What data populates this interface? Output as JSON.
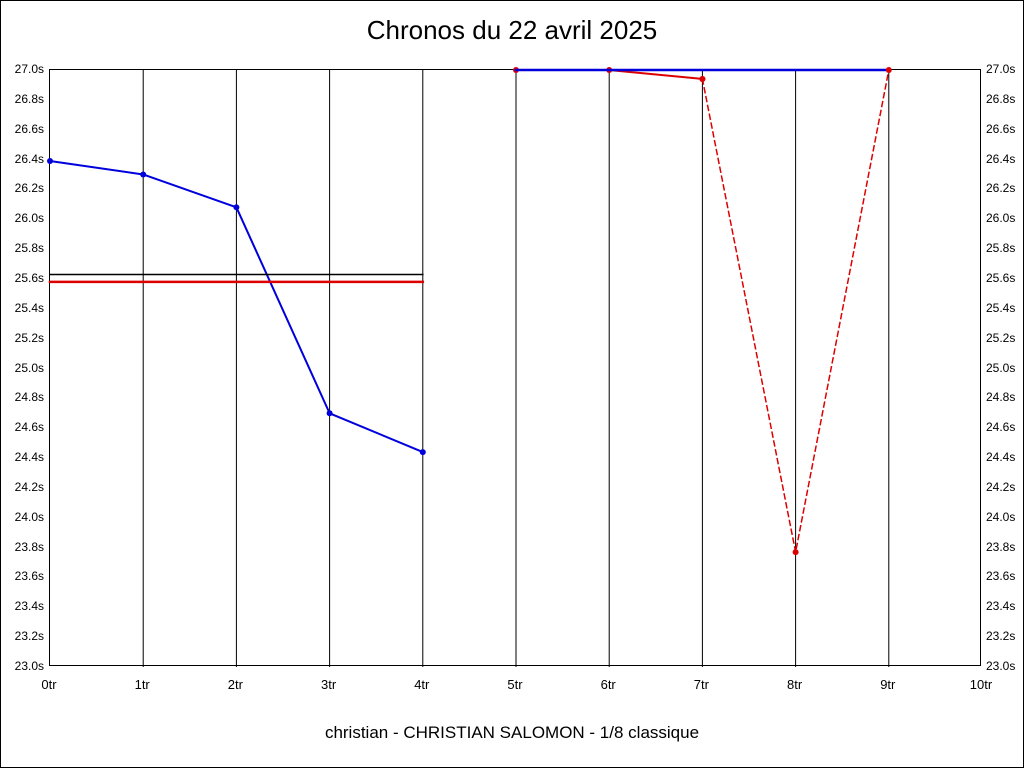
{
  "chart_data": {
    "type": "line",
    "title": "Chronos du 22 avril 2025",
    "caption": "christian - CHRISTIAN SALOMON - 1/8 classique",
    "xlim": [
      0,
      10
    ],
    "ylim": [
      23.0,
      27.0
    ],
    "x_tick_step": 1,
    "y_tick_step": 0.2,
    "x_tick_labels": [
      "0tr",
      "1tr",
      "2tr",
      "3tr",
      "4tr",
      "5tr",
      "6tr",
      "7tr",
      "8tr",
      "9tr",
      "10tr"
    ],
    "y_tick_labels": [
      "27.0s",
      "26.8s",
      "26.6s",
      "26.4s",
      "26.2s",
      "26.0s",
      "25.8s",
      "25.6s",
      "25.4s",
      "25.2s",
      "25.0s",
      "24.8s",
      "24.6s",
      "24.4s",
      "24.2s",
      "24.0s",
      "23.8s",
      "23.6s",
      "23.4s",
      "23.2s",
      "23.0s"
    ],
    "grid": {
      "vertical": true,
      "horizontal": false
    },
    "legend": "none",
    "colors": {
      "lap_blue": "#0000dd",
      "lap_red": "#dd0000",
      "mean_black": "#000000"
    },
    "series": [
      {
        "name": "run1-laps-blue",
        "color": "#0000dd",
        "width": 2,
        "dash": null,
        "markers": true,
        "x": [
          0,
          1,
          2,
          3,
          4
        ],
        "y": [
          26.39,
          26.3,
          26.08,
          24.7,
          24.44
        ]
      },
      {
        "name": "run1-mean-black",
        "color": "#000000",
        "width": 1.5,
        "dash": null,
        "markers": false,
        "x": [
          0,
          4
        ],
        "y": [
          25.63,
          25.63
        ]
      },
      {
        "name": "run1-mean-red",
        "color": "#dd0000",
        "width": 2.5,
        "dash": null,
        "markers": false,
        "x": [
          0,
          4
        ],
        "y": [
          25.58,
          25.58
        ]
      },
      {
        "name": "run2-red-solid",
        "color": "#dd0000",
        "width": 2,
        "dash": null,
        "markers": true,
        "x": [
          5,
          6,
          7
        ],
        "y": [
          27.0,
          27.0,
          26.94
        ]
      },
      {
        "name": "run2-cap-blue",
        "color": "#0000dd",
        "width": 2.5,
        "dash": null,
        "markers": false,
        "x": [
          5,
          6,
          7,
          8,
          9
        ],
        "y": [
          27.0,
          27.0,
          27.0,
          27.0,
          27.0
        ]
      },
      {
        "name": "run2-red-dashed",
        "color": "#dd0000",
        "width": 1.5,
        "dash": "5,4",
        "markers": true,
        "x": [
          7,
          8,
          9
        ],
        "y": [
          26.94,
          23.77,
          27.0
        ]
      }
    ]
  }
}
